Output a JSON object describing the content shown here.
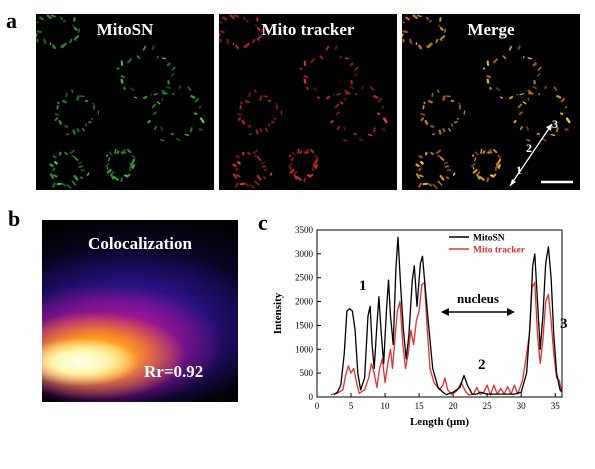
{
  "panel_a": {
    "letter": "a",
    "images": [
      {
        "title": "MitoSN",
        "channel": "green",
        "color": "#3fc43a"
      },
      {
        "title": "Mito tracker",
        "channel": "red",
        "color": "#e0302a"
      },
      {
        "title": "Merge",
        "channel": "merge",
        "color": "#f0b020"
      }
    ],
    "line_labels": [
      "1",
      "2",
      "3"
    ]
  },
  "panel_b": {
    "letter": "b",
    "title": "Colocalization",
    "rr_label": "Rr=0.92"
  },
  "panel_c": {
    "letter": "c",
    "annotations": {
      "peak1": "1",
      "peak2": "2",
      "peak3": "3",
      "nucleus": "nucleus"
    }
  },
  "chart_data": {
    "type": "line",
    "xlabel": "Length (μm)",
    "ylabel": "Intensity",
    "xlim": [
      0,
      36
    ],
    "ylim": [
      0,
      3500
    ],
    "xticks": [
      0,
      5,
      10,
      15,
      20,
      25,
      30,
      35
    ],
    "yticks": [
      0,
      500,
      1000,
      1500,
      2000,
      2500,
      3000,
      3500
    ],
    "legend_position": "top-right",
    "series": [
      {
        "name": "MitoSN",
        "color": "#000000",
        "points": [
          [
            2.5,
            50
          ],
          [
            3.0,
            100
          ],
          [
            3.5,
            250
          ],
          [
            4.0,
            900
          ],
          [
            4.4,
            1800
          ],
          [
            4.8,
            1850
          ],
          [
            5.2,
            1800
          ],
          [
            5.6,
            1400
          ],
          [
            6.0,
            500
          ],
          [
            6.4,
            150
          ],
          [
            7.0,
            400
          ],
          [
            7.5,
            1700
          ],
          [
            7.8,
            1900
          ],
          [
            8.1,
            1100
          ],
          [
            8.4,
            600
          ],
          [
            8.8,
            1500
          ],
          [
            9.1,
            2100
          ],
          [
            9.4,
            1400
          ],
          [
            9.8,
            700
          ],
          [
            10.2,
            1800
          ],
          [
            10.5,
            2450
          ],
          [
            10.8,
            1700
          ],
          [
            11.2,
            1100
          ],
          [
            11.6,
            2700
          ],
          [
            11.9,
            3350
          ],
          [
            12.3,
            2300
          ],
          [
            12.7,
            1400
          ],
          [
            13.1,
            800
          ],
          [
            13.5,
            1300
          ],
          [
            14.0,
            2450
          ],
          [
            14.3,
            2750
          ],
          [
            14.7,
            1900
          ],
          [
            15.2,
            2800
          ],
          [
            15.5,
            2950
          ],
          [
            15.9,
            2300
          ],
          [
            16.4,
            1500
          ],
          [
            17.0,
            600
          ],
          [
            17.8,
            200
          ],
          [
            18.5,
            100
          ],
          [
            19.0,
            50
          ],
          [
            20.0,
            100
          ],
          [
            21.0,
            200
          ],
          [
            21.6,
            450
          ],
          [
            22.1,
            250
          ],
          [
            22.8,
            60
          ],
          [
            23.5,
            60
          ],
          [
            24.0,
            100
          ],
          [
            25.0,
            60
          ],
          [
            26.0,
            60
          ],
          [
            27.0,
            60
          ],
          [
            28.0,
            60
          ],
          [
            29.0,
            60
          ],
          [
            30.0,
            100
          ],
          [
            30.8,
            500
          ],
          [
            31.3,
            1500
          ],
          [
            31.7,
            2750
          ],
          [
            32.0,
            3000
          ],
          [
            32.4,
            2000
          ],
          [
            32.8,
            1000
          ],
          [
            33.2,
            1700
          ],
          [
            33.6,
            2800
          ],
          [
            34.0,
            3150
          ],
          [
            34.4,
            2500
          ],
          [
            34.8,
            1300
          ],
          [
            35.2,
            500
          ],
          [
            35.7,
            150
          ],
          [
            36.0,
            100
          ]
        ]
      },
      {
        "name": "Mito tracker",
        "color": "#e03030",
        "points": [
          [
            2.0,
            50
          ],
          [
            3.0,
            80
          ],
          [
            3.8,
            150
          ],
          [
            4.2,
            450
          ],
          [
            4.6,
            650
          ],
          [
            5.0,
            500
          ],
          [
            5.4,
            600
          ],
          [
            5.8,
            300
          ],
          [
            6.2,
            80
          ],
          [
            7.0,
            150
          ],
          [
            7.6,
            400
          ],
          [
            8.0,
            700
          ],
          [
            8.4,
            500
          ],
          [
            8.8,
            200
          ],
          [
            9.2,
            600
          ],
          [
            9.6,
            800
          ],
          [
            10.0,
            300
          ],
          [
            10.4,
            700
          ],
          [
            10.8,
            1000
          ],
          [
            11.1,
            600
          ],
          [
            11.5,
            1300
          ],
          [
            11.8,
            1800
          ],
          [
            12.2,
            2000
          ],
          [
            12.6,
            1100
          ],
          [
            13.0,
            600
          ],
          [
            13.4,
            900
          ],
          [
            13.8,
            1400
          ],
          [
            14.2,
            1100
          ],
          [
            14.6,
            1600
          ],
          [
            15.0,
            1800
          ],
          [
            15.4,
            2350
          ],
          [
            15.8,
            2400
          ],
          [
            16.2,
            1400
          ],
          [
            16.6,
            600
          ],
          [
            17.2,
            300
          ],
          [
            18.0,
            150
          ],
          [
            18.5,
            250
          ],
          [
            18.8,
            400
          ],
          [
            19.2,
            150
          ],
          [
            19.8,
            50
          ],
          [
            20.5,
            120
          ],
          [
            21.2,
            300
          ],
          [
            21.8,
            120
          ],
          [
            22.3,
            40
          ],
          [
            23.0,
            60
          ],
          [
            23.5,
            200
          ],
          [
            24.0,
            50
          ],
          [
            24.5,
            100
          ],
          [
            25.0,
            250
          ],
          [
            25.5,
            40
          ],
          [
            26.0,
            250
          ],
          [
            26.5,
            60
          ],
          [
            27.0,
            180
          ],
          [
            27.5,
            60
          ],
          [
            28.0,
            220
          ],
          [
            28.5,
            60
          ],
          [
            29.0,
            250
          ],
          [
            29.5,
            60
          ],
          [
            30.2,
            350
          ],
          [
            30.7,
            800
          ],
          [
            31.2,
            1300
          ],
          [
            31.6,
            2300
          ],
          [
            32.0,
            2400
          ],
          [
            32.4,
            1300
          ],
          [
            32.8,
            700
          ],
          [
            33.2,
            1200
          ],
          [
            33.6,
            2000
          ],
          [
            34.0,
            2150
          ],
          [
            34.4,
            1600
          ],
          [
            34.8,
            900
          ],
          [
            35.2,
            400
          ],
          [
            35.6,
            350
          ],
          [
            36.0,
            60
          ]
        ]
      }
    ]
  }
}
